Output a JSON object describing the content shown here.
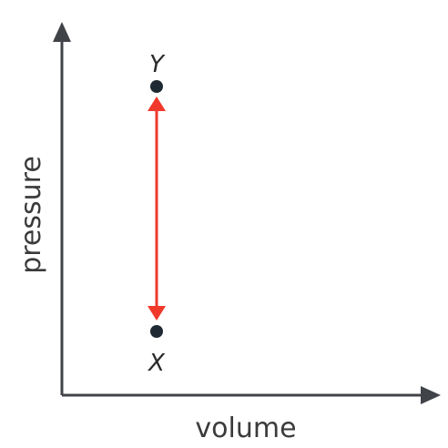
{
  "diagram": {
    "x_axis_label": "volume",
    "y_axis_label": "pressure",
    "points": [
      {
        "label": "Y"
      },
      {
        "label": "X"
      }
    ],
    "colors": {
      "axis": "#404347",
      "arrow": "#f0392b",
      "point": "#1f2933",
      "text": "#3b3b3b"
    }
  }
}
